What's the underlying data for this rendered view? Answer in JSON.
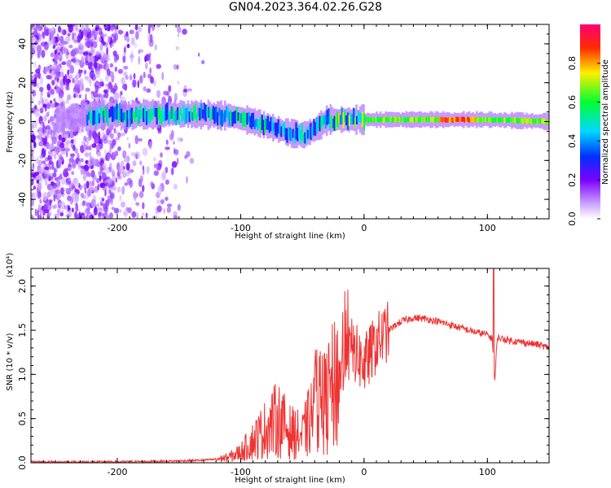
{
  "title": "GN04.2023.364.02.26.G28",
  "chart_data": [
    {
      "type": "heatmap",
      "xlabel": "Height of straight line (km)",
      "ylabel": "Frequency (Hz)",
      "xlim": [
        -270,
        150
      ],
      "ylim": [
        -50,
        50
      ],
      "xticks": [
        -200,
        -100,
        0,
        100
      ],
      "yticks": [
        -40,
        -20,
        0,
        20,
        40
      ],
      "colorbar": {
        "label": "Normalized spectral amplitude",
        "range": [
          0,
          1
        ],
        "ticks": [
          "0.0",
          "0.2",
          "0.4",
          "0.6",
          "0.8"
        ],
        "colormap": "rainbow (white-purple-blue-cyan-green-yellow-red-magenta)"
      },
      "ridge": {
        "x": [
          -270,
          -220,
          -150,
          -110,
          -90,
          -75,
          -60,
          -50,
          -40,
          -30,
          -20,
          0,
          50,
          100,
          150
        ],
        "y": [
          0,
          3,
          4,
          3,
          0,
          -3,
          -6,
          -7,
          -4,
          1,
          1,
          1,
          1,
          1,
          0
        ]
      }
    },
    {
      "type": "line",
      "xlabel": "Height of straight line (km)",
      "ylabel": "SNR (10 * v/v)",
      "yexponent": "(x10⁴)",
      "xlim": [
        -270,
        150
      ],
      "ylim": [
        0,
        2.2
      ],
      "xticks": [
        -200,
        -100,
        0,
        100
      ],
      "yticks": [
        "0.0",
        "0.5",
        "1.0",
        "1.5",
        "2.0"
      ],
      "color": "#ee3333",
      "series": [
        {
          "x": [
            -270,
            -200,
            -150,
            -130,
            -120,
            -110,
            -100,
            -90,
            -80,
            -70,
            -60,
            -50,
            -40,
            -30,
            -20,
            -10,
            0,
            10,
            20,
            30,
            40,
            50,
            60,
            70,
            80,
            90,
            100,
            104,
            106,
            108,
            110,
            120,
            130,
            140,
            150
          ],
          "y": [
            0.01,
            0.01,
            0.02,
            0.03,
            0.04,
            0.06,
            0.12,
            0.25,
            0.38,
            0.5,
            0.35,
            0.3,
            0.6,
            0.7,
            1.0,
            1.3,
            1.1,
            1.35,
            1.5,
            1.6,
            1.64,
            1.63,
            1.6,
            1.56,
            1.52,
            1.48,
            1.45,
            1.4,
            0.9,
            1.42,
            1.41,
            1.38,
            1.36,
            1.34,
            1.3
          ]
        }
      ]
    }
  ]
}
